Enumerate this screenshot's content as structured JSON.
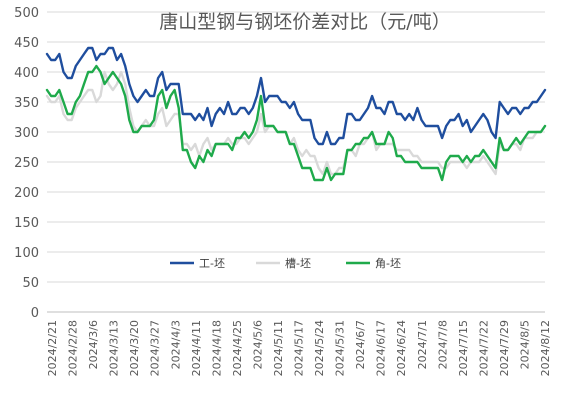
{
  "chart_data": {
    "type": "line",
    "title": "唐山型钢与钢坯价差对比（元/吨）",
    "xlabel": "",
    "ylabel": "",
    "ylim": [
      0,
      500
    ],
    "yticks": [
      0,
      50,
      100,
      150,
      200,
      250,
      300,
      350,
      400,
      450,
      500
    ],
    "grid": true,
    "legend_position": "bottom-center",
    "x_tick_labels": [
      "2024/2/21",
      "2024/2/28",
      "2024/3/6",
      "2024/3/13",
      "2024/3/20",
      "2024/3/27",
      "2024/4/3",
      "2024/4/11",
      "2024/4/18",
      "2024/4/25",
      "2024/5/6",
      "2024/5/11",
      "2024/5/17",
      "2024/5/24",
      "2024/5/31",
      "2024/6/7",
      "2024/6/17",
      "2024/6/24",
      "2024/7/1",
      "2024/7/8",
      "2024/7/15",
      "2024/7/22",
      "2024/7/29",
      "2024/8/5",
      "2024/8/12"
    ],
    "series": [
      {
        "name": "工-坯",
        "color": "#1f4e9e",
        "values": [
          430,
          420,
          420,
          430,
          400,
          390,
          390,
          410,
          420,
          430,
          440,
          440,
          420,
          430,
          430,
          440,
          440,
          420,
          430,
          410,
          380,
          360,
          350,
          360,
          370,
          360,
          360,
          390,
          400,
          370,
          380,
          380,
          380,
          330,
          330,
          330,
          320,
          330,
          320,
          340,
          310,
          330,
          340,
          330,
          350,
          330,
          330,
          340,
          340,
          330,
          340,
          360,
          390,
          350,
          360,
          360,
          360,
          350,
          350,
          340,
          350,
          330,
          320,
          320,
          320,
          290,
          280,
          280,
          300,
          280,
          280,
          290,
          290,
          330,
          330,
          320,
          320,
          330,
          340,
          360,
          340,
          340,
          330,
          350,
          350,
          330,
          330,
          320,
          330,
          320,
          340,
          320,
          310,
          310,
          310,
          310,
          290,
          310,
          320,
          320,
          330,
          310,
          320,
          300,
          310,
          320,
          330,
          320,
          300,
          290,
          350,
          340,
          330,
          340,
          340,
          330,
          340,
          340,
          350,
          350,
          360,
          370
        ]
      },
      {
        "name": "槽-坯",
        "color": "#d9d9d9",
        "values": [
          360,
          350,
          350,
          360,
          330,
          320,
          320,
          340,
          350,
          360,
          370,
          370,
          350,
          360,
          400,
          380,
          370,
          380,
          400,
          380,
          340,
          310,
          300,
          310,
          320,
          310,
          310,
          330,
          340,
          310,
          320,
          330,
          330,
          280,
          280,
          270,
          280,
          260,
          280,
          290,
          270,
          280,
          280,
          280,
          290,
          280,
          280,
          290,
          290,
          280,
          290,
          300,
          330,
          300,
          310,
          310,
          300,
          300,
          300,
          280,
          290,
          270,
          260,
          270,
          260,
          260,
          240,
          230,
          250,
          230,
          230,
          240,
          240,
          270,
          270,
          260,
          280,
          280,
          290,
          300,
          270,
          280,
          280,
          280,
          280,
          270,
          270,
          270,
          270,
          260,
          260,
          250,
          250,
          250,
          250,
          250,
          240,
          240,
          250,
          250,
          250,
          250,
          240,
          250,
          250,
          250,
          260,
          250,
          240,
          230,
          280,
          270,
          270,
          280,
          280,
          270,
          290,
          290,
          290,
          300,
          300,
          310
        ]
      },
      {
        "name": "角-坯",
        "color": "#1faa4b",
        "values": [
          370,
          360,
          360,
          370,
          350,
          330,
          330,
          350,
          360,
          380,
          400,
          400,
          410,
          400,
          380,
          390,
          400,
          390,
          380,
          360,
          320,
          300,
          300,
          310,
          310,
          310,
          320,
          360,
          370,
          340,
          360,
          370,
          340,
          270,
          270,
          250,
          240,
          260,
          250,
          270,
          260,
          280,
          280,
          280,
          280,
          270,
          290,
          290,
          300,
          290,
          300,
          320,
          360,
          310,
          310,
          310,
          300,
          300,
          300,
          280,
          280,
          260,
          240,
          240,
          240,
          220,
          220,
          220,
          240,
          220,
          230,
          230,
          230,
          270,
          270,
          280,
          280,
          290,
          290,
          300,
          280,
          280,
          280,
          300,
          290,
          260,
          260,
          250,
          250,
          250,
          250,
          240,
          240,
          240,
          240,
          240,
          220,
          250,
          260,
          260,
          260,
          250,
          260,
          250,
          260,
          260,
          270,
          260,
          250,
          240,
          290,
          270,
          270,
          280,
          290,
          280,
          290,
          300,
          300,
          300,
          300,
          310
        ]
      }
    ]
  }
}
